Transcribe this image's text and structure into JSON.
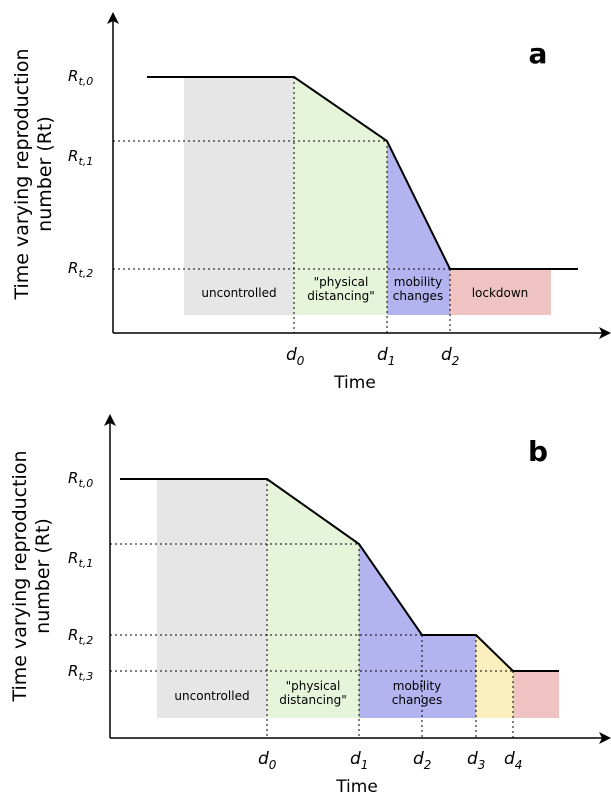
{
  "panels": [
    {
      "letter": "a",
      "y_label_line1": "Time varying reproduction",
      "y_label_line2": "number (Rt)",
      "x_label": "Time",
      "r_labels": [
        {
          "main": "R",
          "sub": "t,0"
        },
        {
          "main": "R",
          "sub": "t,1"
        },
        {
          "main": "R",
          "sub": "t,2"
        }
      ],
      "d_labels": [
        {
          "main": "d",
          "sub": "0"
        },
        {
          "main": "d",
          "sub": "1"
        },
        {
          "main": "d",
          "sub": "2"
        }
      ],
      "regions": [
        {
          "name": "uncontrolled",
          "lines": [
            "uncontrolled"
          ],
          "color": "#e6e6e6"
        },
        {
          "name": "physical-distancing",
          "lines": [
            "\"physical",
            "distancing\""
          ],
          "color": "#e6f5d9"
        },
        {
          "name": "mobility-changes",
          "lines": [
            "mobility",
            "changes"
          ],
          "color": "#b3b3f0"
        },
        {
          "name": "lockdown",
          "lines": [
            "lockdown"
          ],
          "color": "#f0c3c3"
        }
      ]
    },
    {
      "letter": "b",
      "y_label_line1": "Time varying reproduction",
      "y_label_line2": "number (Rt)",
      "x_label": "Time",
      "r_labels": [
        {
          "main": "R",
          "sub": "t,0"
        },
        {
          "main": "R",
          "sub": "t,1"
        },
        {
          "main": "R",
          "sub": "t,2"
        },
        {
          "main": "R",
          "sub": "t,3"
        }
      ],
      "d_labels": [
        {
          "main": "d",
          "sub": "0"
        },
        {
          "main": "d",
          "sub": "1"
        },
        {
          "main": "d",
          "sub": "2"
        },
        {
          "main": "d",
          "sub": "3"
        },
        {
          "main": "d",
          "sub": "4"
        }
      ],
      "regions": [
        {
          "name": "uncontrolled",
          "lines": [
            "uncontrolled"
          ],
          "color": "#e6e6e6"
        },
        {
          "name": "physical-distancing",
          "lines": [
            "\"physical",
            "distancing\""
          ],
          "color": "#e6f5d9"
        },
        {
          "name": "mobility-changes",
          "lines": [
            "mobility",
            "changes"
          ],
          "color": "#b3b3f0"
        },
        {
          "name": "transition",
          "lines": [],
          "color": "#fbefbe"
        },
        {
          "name": "lockdown",
          "lines": [],
          "color": "#f0c3c3"
        }
      ]
    }
  ]
}
